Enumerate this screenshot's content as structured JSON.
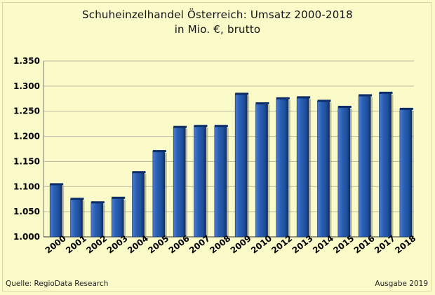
{
  "header": {
    "title_line1": "Schuheinzelhandel Österreich: Umsatz 2000-2018",
    "title_line2": "in Mio. €, brutto"
  },
  "footer": {
    "source": "Quelle: RegioData Research",
    "edition": "Ausgabe 2019"
  },
  "colors": {
    "background": "#fbfbc9",
    "bar": "#1f4f9a",
    "bar_dark": "#0d2d66",
    "bar_light": "#4a7ed0",
    "grid": "#b8b8a0"
  },
  "chart_data": {
    "type": "bar",
    "title": "Schuheinzelhandel Österreich: Umsatz 2000-2018",
    "subtitle": "in Mio. €, brutto",
    "categories": [
      "2000",
      "2001",
      "2002",
      "2003",
      "2004",
      "2005",
      "2006",
      "2007",
      "2008",
      "2009",
      "2010",
      "2012",
      "2013",
      "2014",
      "2015",
      "2016",
      "2017",
      "2018"
    ],
    "values": [
      1104,
      1075,
      1068,
      1077,
      1128,
      1170,
      1218,
      1220,
      1220,
      1284,
      1265,
      1275,
      1277,
      1270,
      1258,
      1281,
      1286,
      1254
    ],
    "ylim": [
      1000,
      1350
    ],
    "yticks": [
      1000,
      1050,
      1100,
      1150,
      1200,
      1250,
      1300,
      1350
    ],
    "ytick_labels": [
      "1.000",
      "1.050",
      "1.100",
      "1.150",
      "1.200",
      "1.250",
      "1.300",
      "1.350"
    ],
    "grid": true,
    "xlabel": "",
    "ylabel": ""
  }
}
